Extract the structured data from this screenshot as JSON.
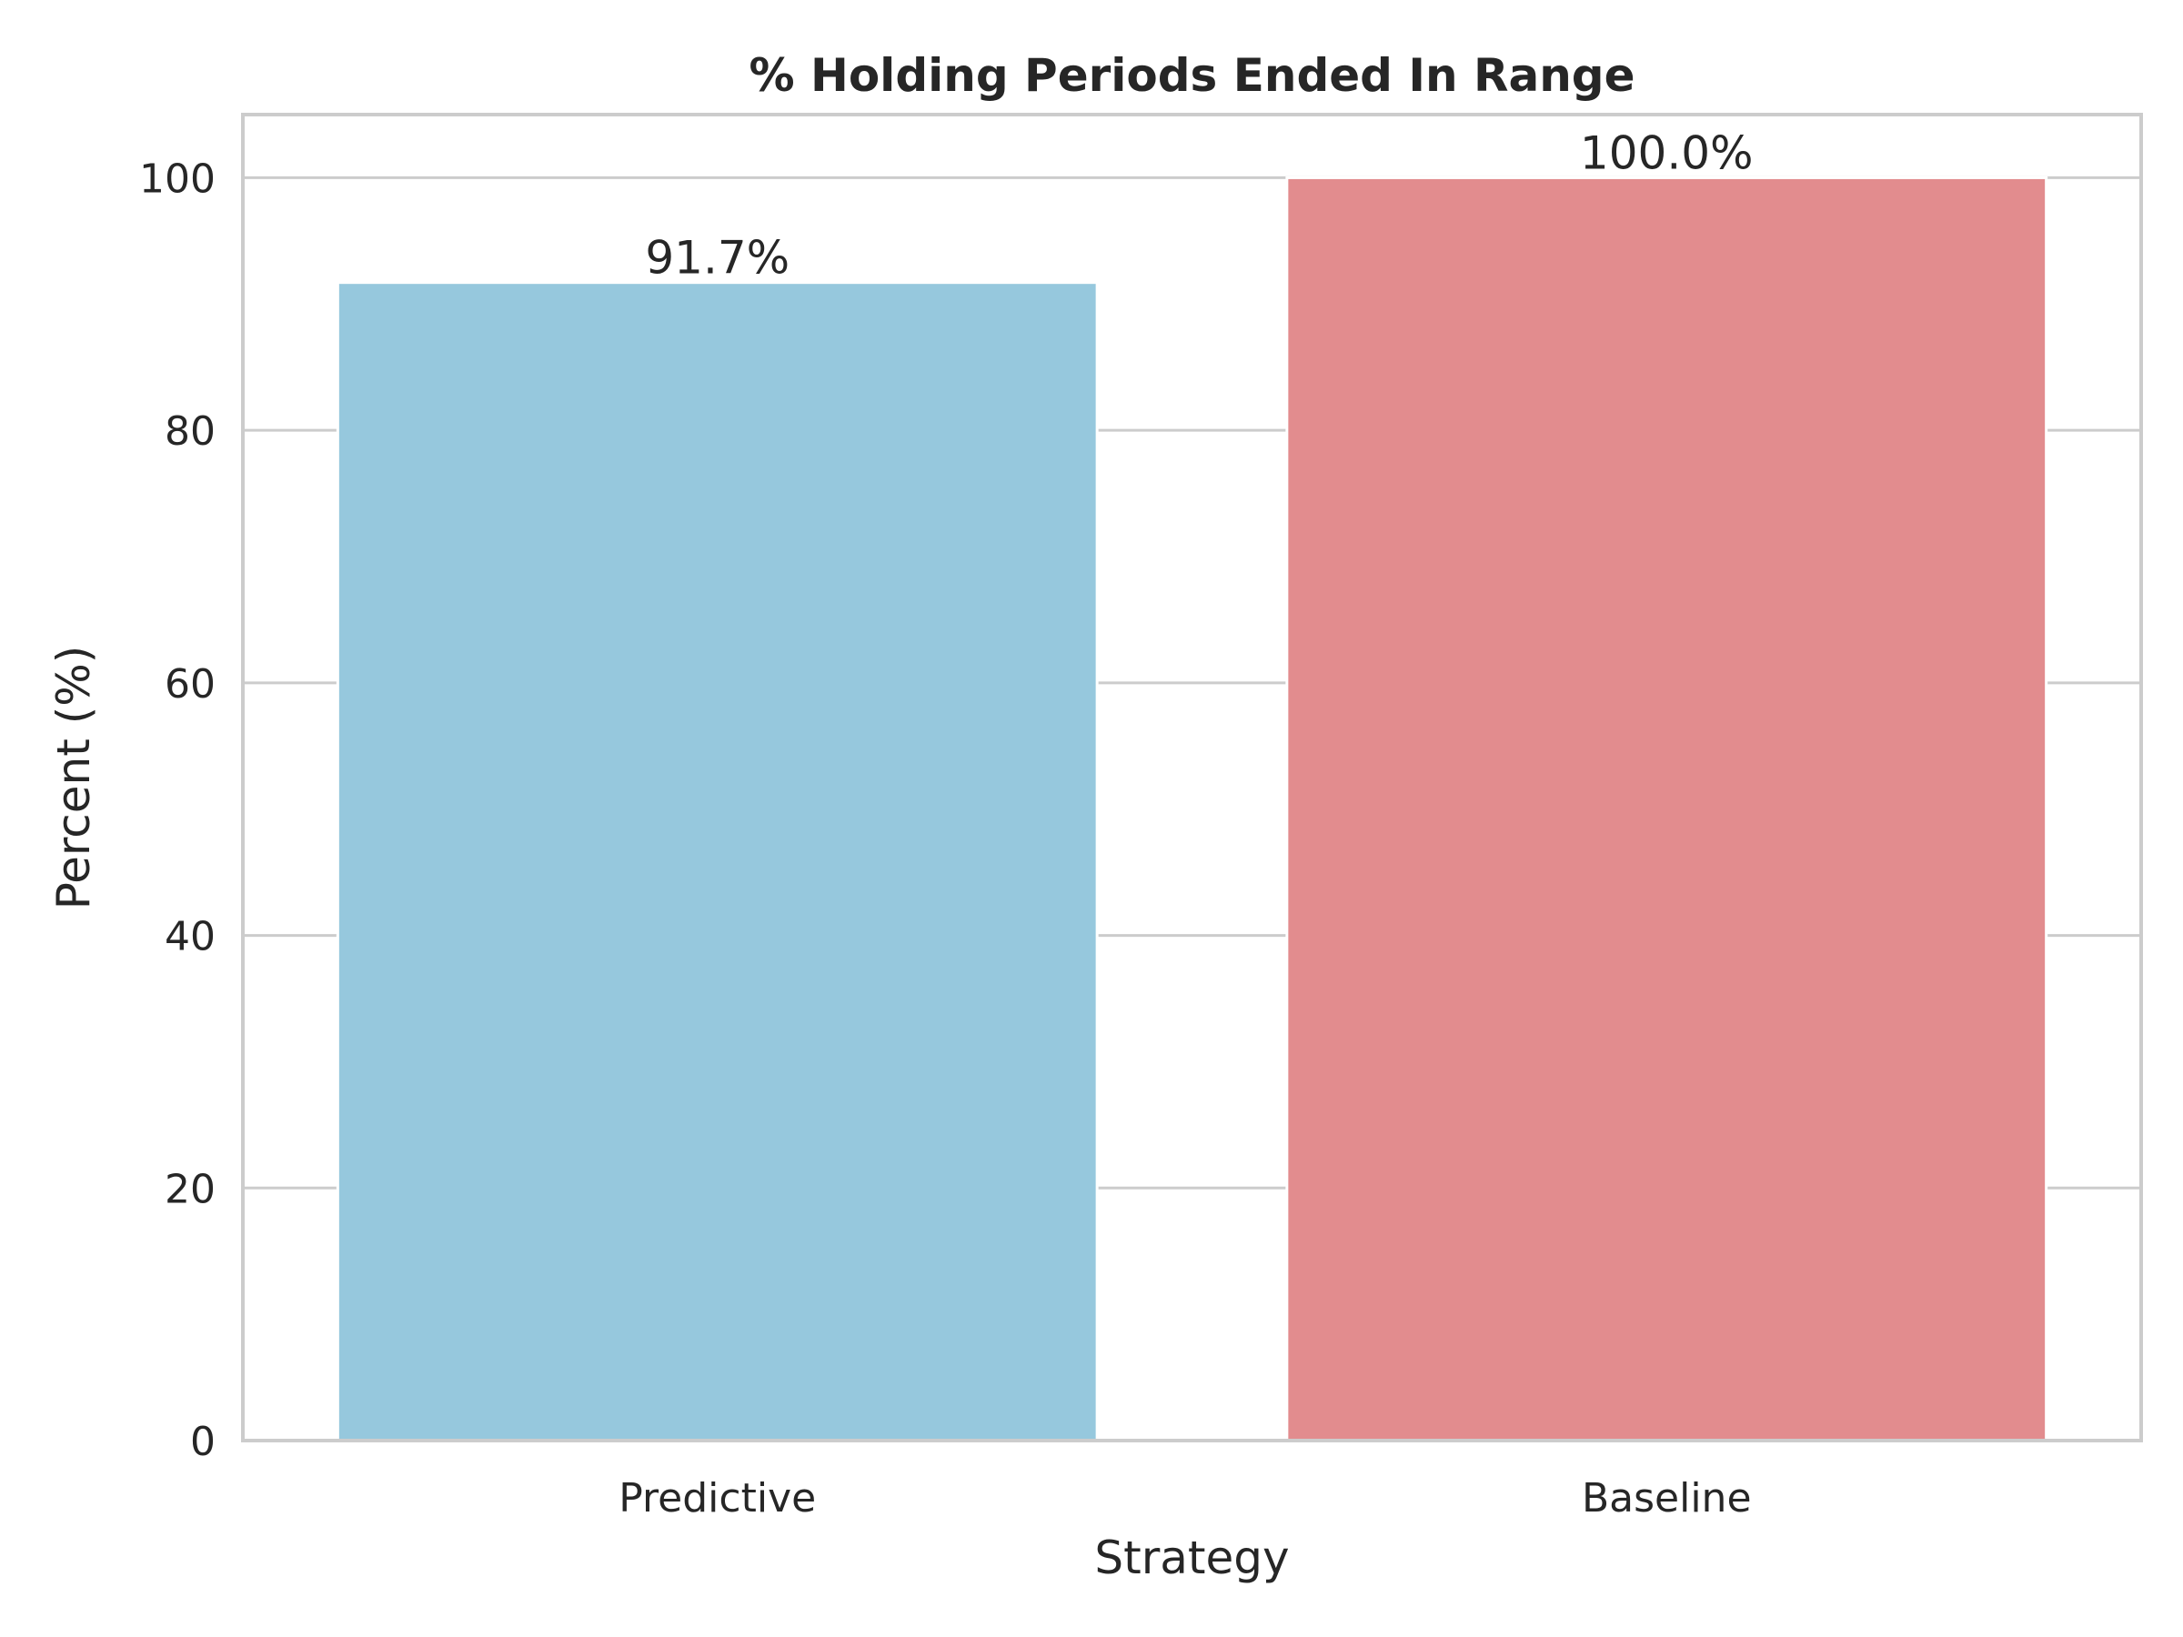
{
  "chart_data": {
    "type": "bar",
    "title": "% Holding Periods Ended In Range",
    "xlabel": "Strategy",
    "ylabel": "Percent (%)",
    "categories": [
      "Predictive",
      "Baseline"
    ],
    "values": [
      91.7,
      100.0
    ],
    "value_labels": [
      "91.7%",
      "100.0%"
    ],
    "colors": [
      "#96c8dd",
      "#e28c8e"
    ],
    "ylim": [
      0,
      105
    ],
    "yticks": [
      0,
      20,
      40,
      60,
      80,
      100
    ],
    "ytick_labels": [
      "0",
      "20",
      "40",
      "60",
      "80",
      "100"
    ],
    "grid": true,
    "grid_axis": "y",
    "legend": "none"
  }
}
